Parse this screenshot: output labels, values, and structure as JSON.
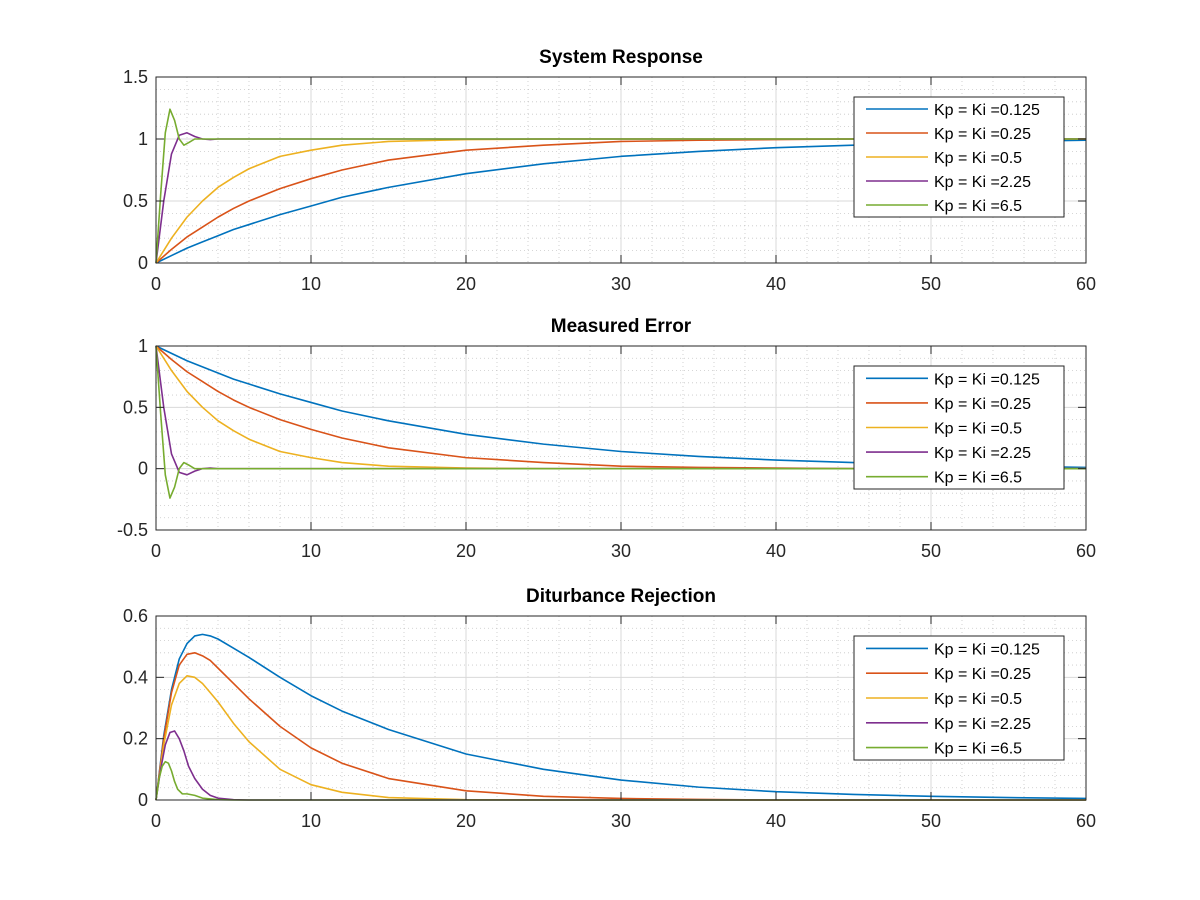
{
  "figure": {
    "colors": {
      "axis": "#262626",
      "grid": "#b0b0b0",
      "background": "#ffffff"
    }
  },
  "chart_data": [
    {
      "type": "line",
      "title": "System Response",
      "xlabel": "",
      "ylabel": "",
      "xlim": [
        0,
        60
      ],
      "ylim": [
        0,
        1.5
      ],
      "xticks": [
        0,
        10,
        20,
        30,
        40,
        50,
        60
      ],
      "yticks": [
        0,
        0.5,
        1,
        1.5
      ],
      "xtick_labels": [
        "0",
        "10",
        "20",
        "30",
        "40",
        "50",
        "60"
      ],
      "ytick_labels": [
        "0",
        "0.5",
        "1",
        "1.5"
      ],
      "grid": true,
      "minor_grid": true,
      "legend_position": "top-right",
      "series": [
        {
          "name": "Kp = Ki =0.125",
          "color": "#0072BD",
          "x": [
            0,
            1,
            2,
            3,
            4,
            5,
            6,
            8,
            10,
            12,
            15,
            20,
            25,
            30,
            35,
            40,
            45,
            50,
            55,
            60
          ],
          "y": [
            0,
            0.06,
            0.12,
            0.17,
            0.22,
            0.27,
            0.31,
            0.39,
            0.46,
            0.53,
            0.61,
            0.72,
            0.8,
            0.86,
            0.9,
            0.93,
            0.95,
            0.97,
            0.98,
            0.99
          ]
        },
        {
          "name": "Kp = Ki =0.25",
          "color": "#D95319",
          "x": [
            0,
            1,
            2,
            3,
            4,
            5,
            6,
            8,
            10,
            12,
            15,
            20,
            25,
            30,
            35,
            40,
            45,
            50,
            55,
            60
          ],
          "y": [
            0,
            0.11,
            0.21,
            0.29,
            0.37,
            0.44,
            0.5,
            0.6,
            0.68,
            0.75,
            0.83,
            0.91,
            0.95,
            0.98,
            0.99,
            0.995,
            1.0,
            1.0,
            1.0,
            1.0
          ]
        },
        {
          "name": "Kp = Ki =0.5",
          "color": "#EDB120",
          "x": [
            0,
            1,
            2,
            3,
            4,
            5,
            6,
            8,
            10,
            12,
            15,
            20,
            25,
            30,
            35,
            40,
            45,
            50,
            55,
            60
          ],
          "y": [
            0,
            0.2,
            0.37,
            0.5,
            0.61,
            0.69,
            0.76,
            0.86,
            0.91,
            0.95,
            0.98,
            0.995,
            1.0,
            1.0,
            1.0,
            1.0,
            1.0,
            1.0,
            1.0,
            1.0
          ]
        },
        {
          "name": "Kp = Ki =2.25",
          "color": "#7E2F8E",
          "x": [
            0,
            0.5,
            1,
            1.5,
            2,
            2.5,
            3,
            3.5,
            4,
            5,
            6,
            8,
            10,
            20,
            30,
            40,
            50,
            60
          ],
          "y": [
            0,
            0.5,
            0.88,
            1.03,
            1.05,
            1.02,
            1.0,
            0.995,
            1.0,
            1.0,
            1.0,
            1.0,
            1.0,
            1.0,
            1.0,
            1.0,
            1.0,
            1.0
          ]
        },
        {
          "name": "Kp = Ki =6.5",
          "color": "#77AC30",
          "x": [
            0,
            0.3,
            0.6,
            0.9,
            1.2,
            1.5,
            1.8,
            2.1,
            2.5,
            3,
            3.5,
            4,
            5,
            10,
            20,
            30,
            40,
            50,
            60
          ],
          "y": [
            0,
            0.55,
            1.05,
            1.24,
            1.15,
            1.0,
            0.95,
            0.97,
            1.0,
            1.0,
            1.0,
            1.0,
            1.0,
            1.0,
            1.0,
            1.0,
            1.0,
            1.0,
            1.0
          ]
        }
      ]
    },
    {
      "type": "line",
      "title": "Measured Error",
      "xlabel": "",
      "ylabel": "",
      "xlim": [
        0,
        60
      ],
      "ylim": [
        -0.5,
        1
      ],
      "xticks": [
        0,
        10,
        20,
        30,
        40,
        50,
        60
      ],
      "yticks": [
        -0.5,
        0,
        0.5,
        1
      ],
      "xtick_labels": [
        "0",
        "10",
        "20",
        "30",
        "40",
        "50",
        "60"
      ],
      "ytick_labels": [
        "-0.5",
        "0",
        "0.5",
        "1"
      ],
      "grid": true,
      "minor_grid": true,
      "legend_position": "top-right",
      "series": [
        {
          "name": "Kp = Ki =0.125",
          "color": "#0072BD",
          "x": [
            0,
            1,
            2,
            3,
            4,
            5,
            6,
            8,
            10,
            12,
            15,
            20,
            25,
            30,
            35,
            40,
            45,
            50,
            55,
            60
          ],
          "y": [
            1,
            0.94,
            0.88,
            0.83,
            0.78,
            0.73,
            0.69,
            0.61,
            0.54,
            0.47,
            0.39,
            0.28,
            0.2,
            0.14,
            0.1,
            0.07,
            0.05,
            0.03,
            0.02,
            0.01
          ]
        },
        {
          "name": "Kp = Ki =0.25",
          "color": "#D95319",
          "x": [
            0,
            1,
            2,
            3,
            4,
            5,
            6,
            8,
            10,
            12,
            15,
            20,
            25,
            30,
            35,
            40,
            45,
            50,
            55,
            60
          ],
          "y": [
            1,
            0.89,
            0.79,
            0.71,
            0.63,
            0.56,
            0.5,
            0.4,
            0.32,
            0.25,
            0.17,
            0.09,
            0.05,
            0.02,
            0.01,
            0.005,
            0,
            0,
            0,
            0
          ]
        },
        {
          "name": "Kp = Ki =0.5",
          "color": "#EDB120",
          "x": [
            0,
            1,
            2,
            3,
            4,
            5,
            6,
            8,
            10,
            12,
            15,
            20,
            25,
            30,
            35,
            40,
            45,
            50,
            55,
            60
          ],
          "y": [
            1,
            0.8,
            0.63,
            0.5,
            0.39,
            0.31,
            0.24,
            0.14,
            0.09,
            0.05,
            0.02,
            0.005,
            0,
            0,
            0,
            0,
            0,
            0,
            0,
            0
          ]
        },
        {
          "name": "Kp = Ki =2.25",
          "color": "#7E2F8E",
          "x": [
            0,
            0.5,
            1,
            1.5,
            2,
            2.5,
            3,
            3.5,
            4,
            5,
            6,
            8,
            10,
            20,
            30,
            40,
            50,
            60
          ],
          "y": [
            1,
            0.5,
            0.12,
            -0.03,
            -0.05,
            -0.02,
            0,
            0.005,
            0,
            0,
            0,
            0,
            0,
            0,
            0,
            0,
            0,
            0
          ]
        },
        {
          "name": "Kp = Ki =6.5",
          "color": "#77AC30",
          "x": [
            0,
            0.3,
            0.6,
            0.9,
            1.2,
            1.5,
            1.8,
            2.1,
            2.5,
            3,
            3.5,
            4,
            5,
            10,
            20,
            30,
            40,
            50,
            60
          ],
          "y": [
            1,
            0.45,
            -0.05,
            -0.24,
            -0.15,
            0,
            0.05,
            0.03,
            0,
            0,
            0,
            0,
            0,
            0,
            0,
            0,
            0,
            0,
            0
          ]
        }
      ]
    },
    {
      "type": "line",
      "title": "Diturbance Rejection",
      "xlabel": "",
      "ylabel": "",
      "xlim": [
        0,
        60
      ],
      "ylim": [
        0,
        0.6
      ],
      "xticks": [
        0,
        10,
        20,
        30,
        40,
        50,
        60
      ],
      "yticks": [
        0,
        0.2,
        0.4,
        0.6
      ],
      "xtick_labels": [
        "0",
        "10",
        "20",
        "30",
        "40",
        "50",
        "60"
      ],
      "ytick_labels": [
        "0",
        "0.2",
        "0.4",
        "0.6"
      ],
      "grid": true,
      "minor_grid": true,
      "legend_position": "top-right",
      "series": [
        {
          "name": "Kp = Ki =0.125",
          "color": "#0072BD",
          "x": [
            0,
            0.5,
            1,
            1.5,
            2,
            2.5,
            3,
            3.5,
            4,
            5,
            6,
            8,
            10,
            12,
            15,
            20,
            25,
            30,
            35,
            40,
            45,
            50,
            55,
            60
          ],
          "y": [
            0,
            0.21,
            0.36,
            0.46,
            0.51,
            0.535,
            0.54,
            0.535,
            0.525,
            0.495,
            0.465,
            0.4,
            0.34,
            0.29,
            0.23,
            0.15,
            0.1,
            0.065,
            0.042,
            0.027,
            0.018,
            0.012,
            0.008,
            0.005
          ]
        },
        {
          "name": "Kp = Ki =0.25",
          "color": "#D95319",
          "x": [
            0,
            0.5,
            1,
            1.5,
            2,
            2.5,
            3,
            3.5,
            4,
            5,
            6,
            8,
            10,
            12,
            15,
            20,
            25,
            30,
            35,
            40,
            45,
            50,
            55,
            60
          ],
          "y": [
            0,
            0.2,
            0.35,
            0.44,
            0.475,
            0.48,
            0.47,
            0.455,
            0.43,
            0.38,
            0.33,
            0.24,
            0.17,
            0.12,
            0.07,
            0.03,
            0.012,
            0.005,
            0.002,
            0,
            0,
            0,
            0,
            0
          ]
        },
        {
          "name": "Kp = Ki =0.5",
          "color": "#EDB120",
          "x": [
            0,
            0.5,
            1,
            1.5,
            2,
            2.5,
            3,
            3.5,
            4,
            5,
            6,
            8,
            10,
            12,
            15,
            20,
            25,
            30,
            35,
            40,
            45,
            50,
            55,
            60
          ],
          "y": [
            0,
            0.18,
            0.31,
            0.38,
            0.405,
            0.4,
            0.38,
            0.35,
            0.32,
            0.25,
            0.19,
            0.1,
            0.05,
            0.025,
            0.008,
            0.001,
            0,
            0,
            0,
            0,
            0,
            0,
            0,
            0
          ]
        },
        {
          "name": "Kp = Ki =2.25",
          "color": "#7E2F8E",
          "x": [
            0,
            0.3,
            0.6,
            0.9,
            1.2,
            1.5,
            1.8,
            2.1,
            2.5,
            3,
            3.5,
            4,
            5,
            6,
            8,
            10,
            20,
            30,
            40,
            50,
            60
          ],
          "y": [
            0,
            0.1,
            0.18,
            0.22,
            0.225,
            0.2,
            0.16,
            0.11,
            0.07,
            0.035,
            0.015,
            0.006,
            0.001,
            0,
            0,
            0,
            0,
            0,
            0,
            0,
            0
          ]
        },
        {
          "name": "Kp = Ki =6.5",
          "color": "#77AC30",
          "x": [
            0,
            0.2,
            0.4,
            0.6,
            0.8,
            1.0,
            1.2,
            1.4,
            1.7,
            2.0,
            2.5,
            3,
            4,
            5,
            10,
            20,
            30,
            40,
            50,
            60
          ],
          "y": [
            0,
            0.07,
            0.11,
            0.125,
            0.12,
            0.095,
            0.06,
            0.035,
            0.02,
            0.02,
            0.015,
            0.006,
            0.001,
            0,
            0,
            0,
            0,
            0,
            0,
            0
          ]
        }
      ]
    }
  ]
}
